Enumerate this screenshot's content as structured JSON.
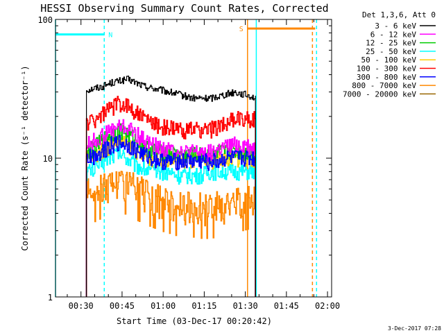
{
  "chart_data": {
    "type": "line",
    "title": "HESSI Observing Summary Count Rates, Corrected",
    "xlabel": "Start Time (03-Dec-17 00:20:42)",
    "ylabel": "Corrected Count Rate (s⁻¹ detector⁻¹)",
    "x_ticks": [
      "00:30",
      "00:45",
      "01:00",
      "01:15",
      "01:30",
      "01:45",
      "02:00"
    ],
    "y_ticks": [
      "1",
      "10",
      "100"
    ],
    "xlim_minutes_after_midnight": [
      20.7,
      121.5
    ],
    "ylim": [
      1,
      100
    ],
    "yscale": "log",
    "legend_title": "Det 1,3,6, Att 0",
    "legend_placement": "right",
    "timestamp": "3-Dec-2017 07:28",
    "x_minutes_after_midnight": [
      32,
      35,
      38,
      41,
      44,
      47,
      50,
      53,
      56,
      59,
      62,
      65,
      68,
      71,
      74,
      77,
      80,
      83,
      86,
      89,
      92,
      93.7
    ],
    "series": [
      {
        "name": "3 - 6 keV",
        "color": "#000000",
        "values": [
          31,
          32,
          33,
          35,
          36,
          37,
          35,
          33,
          32,
          31,
          30,
          29,
          28,
          27,
          27,
          27,
          28,
          29,
          30,
          29,
          28,
          27
        ]
      },
      {
        "name": "6 - 12 keV",
        "color": "#ff00ff",
        "values": [
          12.5,
          13.5,
          14.5,
          16,
          17,
          16.5,
          15,
          13.5,
          12.5,
          12,
          11.5,
          11.5,
          11,
          11,
          11,
          11,
          11.5,
          12,
          12.5,
          12.5,
          12,
          11.5
        ]
      },
      {
        "name": "12 - 25 keV",
        "color": "#00cc00",
        "values": [
          11,
          12,
          13.5,
          15,
          16,
          15,
          13.5,
          12,
          11.5,
          11,
          11,
          10.5,
          10.5,
          10.5,
          10.5,
          10.5,
          11,
          11,
          11.5,
          11,
          11,
          10.5
        ]
      },
      {
        "name": "25 - 50 keV",
        "color": "#00ffff",
        "values": [
          8,
          8.5,
          9.5,
          10.5,
          11,
          10,
          9,
          8.5,
          8,
          8,
          8,
          7.5,
          7.5,
          7.5,
          7.5,
          8,
          8,
          8,
          8,
          8,
          8,
          8
        ]
      },
      {
        "name": "50 - 100 keV",
        "color": "#ffcc00",
        "values": [
          10,
          10.5,
          11.5,
          12.5,
          13.5,
          12.5,
          11.5,
          10.5,
          10,
          10,
          10,
          9.5,
          9.5,
          9.5,
          9.5,
          9.5,
          10,
          10,
          10,
          10,
          10,
          9.5
        ]
      },
      {
        "name": "100 - 300 keV",
        "color": "#ff0000",
        "values": [
          18,
          19,
          21,
          23,
          25,
          24,
          21.5,
          19.5,
          18,
          17,
          16.5,
          16,
          16,
          16,
          16,
          16,
          17,
          18,
          19,
          19.5,
          19,
          19
        ]
      },
      {
        "name": "300 - 800 keV",
        "color": "#0000ff",
        "values": [
          10,
          10.5,
          11.5,
          12.5,
          13,
          12.5,
          11.5,
          10.5,
          10,
          9.5,
          9.5,
          9.5,
          9.5,
          9.5,
          9.5,
          9.5,
          9.5,
          10,
          10,
          10,
          10,
          10
        ]
      },
      {
        "name": "800 - 7000 keV",
        "color": "#ff8800",
        "values": [
          5.5,
          5.8,
          6.2,
          6.5,
          6.8,
          6.5,
          6,
          5.6,
          5.3,
          5,
          4.8,
          4.6,
          4.5,
          4.5,
          4.4,
          4.4,
          4.5,
          4.6,
          4.8,
          5,
          5.2,
          5.3
        ]
      },
      {
        "name": "7000 - 20000 keV",
        "color": "#996600",
        "values": []
      }
    ],
    "annotations": [
      {
        "label": "N",
        "color": "#00ffff",
        "x_start": 20.7,
        "x_end": 38.5,
        "level": 78
      },
      {
        "label": "S",
        "color": "#ff8800",
        "x_start": 90.8,
        "x_end": 115.5,
        "level": 86
      }
    ],
    "markers": [
      {
        "color": "#00ffff",
        "x": 20.7,
        "style": "solid"
      },
      {
        "color": "#00ffff",
        "x": 38.5,
        "style": "dashed"
      },
      {
        "color": "#ff8800",
        "x": 90.8,
        "style": "solid"
      },
      {
        "color": "#00ffff",
        "x": 94,
        "style": "solid"
      },
      {
        "color": "#ff8800",
        "x": 114.5,
        "style": "dashed"
      },
      {
        "color": "#00ffff",
        "x": 116,
        "style": "dashed"
      }
    ]
  }
}
